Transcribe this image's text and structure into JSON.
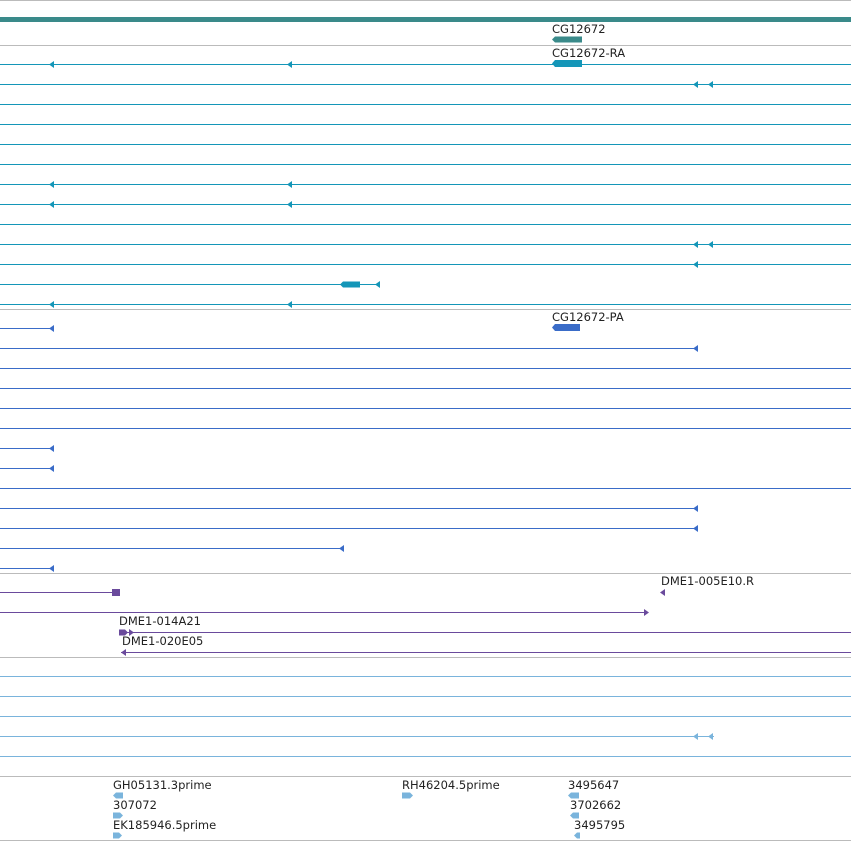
{
  "colors": {
    "gene": "#3a8a8a",
    "mrna": "#1496b8",
    "cdna": "#3a6cc8",
    "bac": "#6a4a9c",
    "est": "#7ab4dc",
    "separator": "#bbbbbb"
  },
  "labels": {
    "gene": "CG12672",
    "mrna": "CG12672-RA",
    "cdna": "CG12672-PA",
    "bac_right": "DME1-005E10.R",
    "bac_1": "DME1-014A21",
    "bac_2": "DME1-020E05",
    "est_1": "GH05131.3prime",
    "est_2": "RH46204.5prime",
    "est_3": "3495647",
    "est_4": "307072",
    "est_5": "3702662",
    "est_6": "EK185946.5prime",
    "est_7": "3495795"
  }
}
